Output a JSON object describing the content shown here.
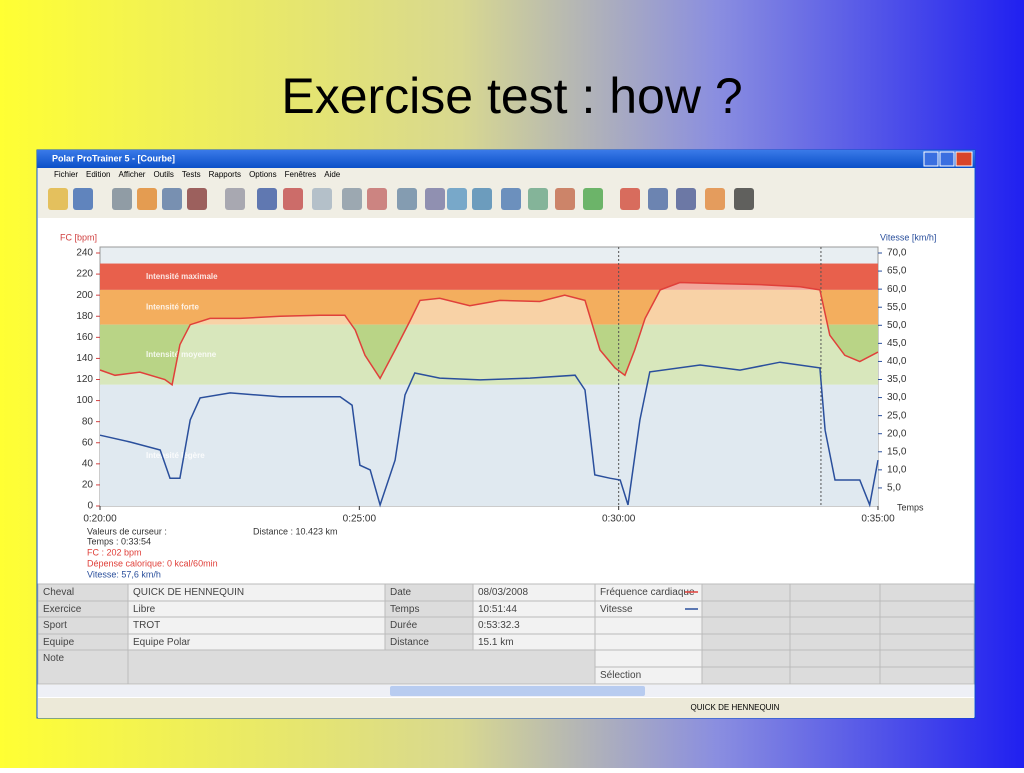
{
  "slide": {
    "title": "Exercise test : how ?"
  },
  "window": {
    "title": "Polar ProTrainer 5 - [Courbe]",
    "menu": [
      "Fichier",
      "Edition",
      "Afficher",
      "Outils",
      "Tests",
      "Rapports",
      "Options",
      "Fenêtres",
      "Aide"
    ],
    "status": "QUICK DE HENNEQUIN"
  },
  "chart_data": {
    "type": "line",
    "ylabel": "FC [bpm]",
    "y2label": "Vitesse [km/h]",
    "xlabel": "Temps",
    "xlim": [
      20,
      35
    ],
    "xticks": [
      {
        "value": 20,
        "label": "0:20:00"
      },
      {
        "value": 25,
        "label": "0:25:00"
      },
      {
        "value": 30,
        "label": "0:30:00"
      },
      {
        "value": 35,
        "label": "0:35:00"
      }
    ],
    "ylim": [
      0,
      240
    ],
    "yticks": [
      0,
      20,
      40,
      60,
      80,
      100,
      120,
      140,
      160,
      180,
      200,
      220,
      240
    ],
    "y2lim": [
      0,
      70
    ],
    "y2ticks": [
      {
        "value": 5,
        "label": "5,0"
      },
      {
        "value": 10,
        "label": "10,0"
      },
      {
        "value": 15,
        "label": "15,0"
      },
      {
        "value": 20,
        "label": "20,0"
      },
      {
        "value": 25,
        "label": "25,0"
      },
      {
        "value": 30,
        "label": "30,0"
      },
      {
        "value": 35,
        "label": "35,0"
      },
      {
        "value": 40,
        "label": "40,0"
      },
      {
        "value": 45,
        "label": "45,0"
      },
      {
        "value": 50,
        "label": "50,0"
      },
      {
        "value": 55,
        "label": "55,0"
      },
      {
        "value": 60,
        "label": "60,0"
      },
      {
        "value": 65,
        "label": "65,0"
      },
      {
        "value": 70,
        "label": "70,0"
      }
    ],
    "zones": [
      {
        "name": "Intensité maximale",
        "from": 205,
        "to": 230,
        "color": "#e8604c"
      },
      {
        "name": "Intensité forte",
        "from": 172,
        "to": 205,
        "color": "#f3ae5e"
      },
      {
        "name": "Intensité moyenne",
        "from": 115,
        "to": 172,
        "color": "#b9d486"
      },
      {
        "name": "Intensité légère",
        "from": 0,
        "to": 115,
        "color": "#c6d8e4"
      }
    ],
    "markers_x": [
      30,
      33.9
    ],
    "series": [
      {
        "name": "Fréquence cardiaque",
        "color": "#e0403a",
        "x": [
          20.0,
          20.29,
          20.77,
          21.25,
          21.39,
          21.54,
          21.74,
          22.12,
          22.7,
          23.47,
          24.24,
          24.72,
          24.92,
          25.11,
          25.4,
          25.69,
          25.98,
          26.17,
          26.55,
          27.13,
          27.71,
          28.48,
          28.96,
          29.35,
          29.64,
          29.93,
          30.12,
          30.31,
          30.51,
          30.8,
          31.18,
          31.95,
          32.72,
          33.5,
          33.88,
          34.07,
          34.36,
          34.65,
          35.0
        ],
        "values": [
          129,
          124,
          127,
          120,
          115,
          153,
          172,
          178,
          178,
          180,
          181,
          181,
          167,
          143,
          121,
          148,
          176,
          195,
          197,
          190,
          195,
          194,
          200,
          195,
          148,
          131,
          124,
          148,
          178,
          205,
          212,
          211,
          210,
          208,
          205,
          162,
          143,
          137,
          146
        ]
      },
      {
        "name": "Vitesse",
        "color": "#2a4f9c",
        "axis": "y2",
        "x": [
          20.0,
          20.58,
          21.16,
          21.35,
          21.54,
          21.74,
          21.93,
          22.51,
          23.47,
          24.63,
          24.86,
          25.01,
          25.21,
          25.4,
          25.69,
          25.88,
          26.07,
          26.55,
          27.33,
          28.29,
          29.16,
          29.35,
          29.54,
          29.83,
          30.03,
          30.18,
          30.41,
          30.6,
          31.57,
          32.34,
          33.11,
          33.88,
          33.98,
          34.17,
          34.65,
          34.84,
          35.0
        ],
        "values": [
          19.6,
          17.7,
          15.5,
          7.7,
          7.7,
          23.8,
          29.9,
          31.3,
          30.2,
          30.2,
          27.9,
          11.3,
          10.0,
          0.3,
          12.7,
          30.7,
          36.8,
          35.4,
          34.9,
          35.4,
          36.2,
          32.1,
          8.6,
          7.7,
          7.2,
          0.3,
          23.8,
          37.1,
          39.0,
          37.6,
          39.8,
          38.2,
          21.0,
          7.2,
          7.2,
          0.3,
          12.7
        ]
      }
    ]
  },
  "cursor": {
    "lines": [
      "Valeurs de curseur :",
      "Temps : 0:33:54",
      "FC : 202 bpm",
      "Dépense calorique: 0 kcal/60min",
      "Vitesse: 57,6 km/h"
    ],
    "distance": "Distance : 10.423 km"
  },
  "info_table": {
    "rows": [
      [
        "Cheval",
        "QUICK DE HENNEQUIN",
        "Date",
        "08/03/2008"
      ],
      [
        "Exercice",
        "Libre",
        "Temps",
        "10:51:44"
      ],
      [
        "Sport",
        "TROT",
        "Durée",
        "0:53:32.3"
      ],
      [
        "Equipe",
        "Equipe Polar",
        "Distance",
        "15.1 km"
      ],
      [
        "Note"
      ]
    ],
    "legend": [
      "Fréquence cardiaque",
      "Vitesse"
    ],
    "selection": "Sélection"
  }
}
